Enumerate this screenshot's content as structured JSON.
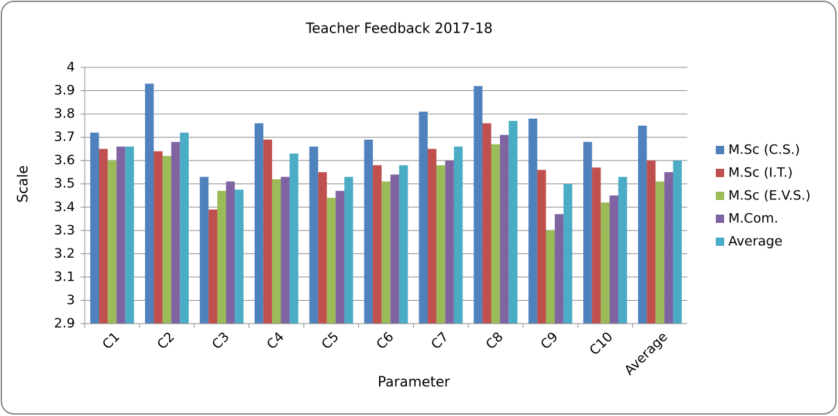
{
  "chart_data": {
    "type": "bar",
    "title": "Teacher Feedback 2017-18",
    "x_label": "Parameter",
    "y_label": "Scale",
    "categories": [
      "C1",
      "C2",
      "C3",
      "C4",
      "C5",
      "C6",
      "C7",
      "C8",
      "C9",
      "C10",
      "Average"
    ],
    "series": [
      {
        "name": "M.Sc (C.S.)",
        "color": "#4F81BD",
        "values": [
          3.72,
          3.93,
          3.53,
          3.76,
          3.66,
          3.69,
          3.81,
          3.92,
          3.78,
          3.68,
          3.75
        ]
      },
      {
        "name": "M.Sc (I.T.)",
        "color": "#C0504D",
        "values": [
          3.65,
          3.64,
          3.39,
          3.69,
          3.55,
          3.58,
          3.65,
          3.76,
          3.56,
          3.57,
          3.6
        ]
      },
      {
        "name": "M.Sc (E.V.S.)",
        "color": "#9BBB59",
        "values": [
          3.6,
          3.62,
          3.47,
          3.52,
          3.44,
          3.51,
          3.58,
          3.67,
          3.3,
          3.42,
          3.51
        ]
      },
      {
        "name": "M.Com.",
        "color": "#8064A2",
        "values": [
          3.66,
          3.68,
          3.51,
          3.53,
          3.47,
          3.54,
          3.6,
          3.71,
          3.37,
          3.45,
          3.55
        ]
      },
      {
        "name": "Average",
        "color": "#4BACC6",
        "values": [
          3.66,
          3.72,
          3.475,
          3.63,
          3.53,
          3.58,
          3.66,
          3.77,
          3.5,
          3.53,
          3.6
        ]
      }
    ],
    "ylim": [
      2.9,
      4
    ],
    "yticks": [
      2.9,
      3,
      3.1,
      3.2,
      3.3,
      3.4,
      3.5,
      3.6,
      3.7,
      3.8,
      3.9,
      4
    ],
    "grid": true,
    "legend": "right"
  }
}
